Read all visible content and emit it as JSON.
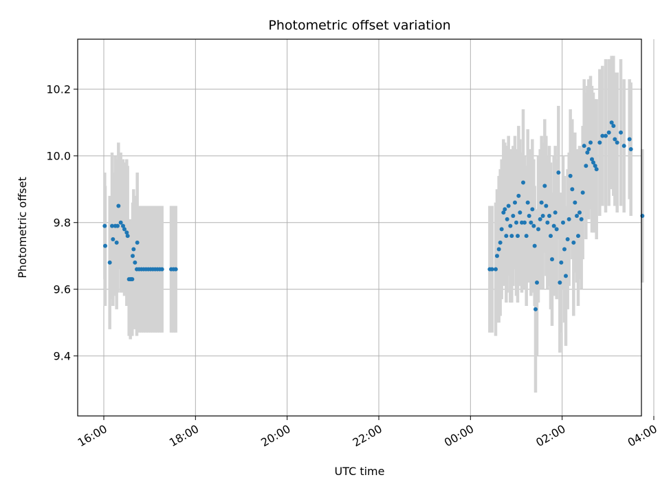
{
  "chart_data": {
    "type": "scatter",
    "title": "Photometric offset variation",
    "xlabel": "UTC time",
    "ylabel": "Photometric offset",
    "x_ticks": [
      "16:00",
      "18:00",
      "20:00",
      "22:00",
      "00:00",
      "02:00",
      "04:00"
    ],
    "y_ticks": [
      "9.4",
      "9.6",
      "9.8",
      "10.0",
      "10.2"
    ],
    "xlim_hours": [
      15.43,
      27.73
    ],
    "ylim": [
      9.22,
      10.35
    ],
    "grid": true,
    "colors": {
      "points": "#1f77b4",
      "errorbars": "#d3d3d3",
      "grid": "#b0b0b0"
    },
    "series": [
      {
        "points": [
          {
            "x": 16.02,
            "y": 9.79,
            "err": 0.16
          },
          {
            "x": 16.03,
            "y": 9.73,
            "err": 0.18
          },
          {
            "x": 16.13,
            "y": 9.68,
            "err": 0.2
          },
          {
            "x": 16.18,
            "y": 9.79,
            "err": 0.22
          },
          {
            "x": 16.2,
            "y": 9.75,
            "err": 0.2
          },
          {
            "x": 16.25,
            "y": 9.79,
            "err": 0.21
          },
          {
            "x": 16.28,
            "y": 9.74,
            "err": 0.2
          },
          {
            "x": 16.3,
            "y": 9.79,
            "err": 0.2
          },
          {
            "x": 16.32,
            "y": 9.85,
            "err": 0.19
          },
          {
            "x": 16.37,
            "y": 9.8,
            "err": 0.21
          },
          {
            "x": 16.42,
            "y": 9.79,
            "err": 0.2
          },
          {
            "x": 16.45,
            "y": 9.78,
            "err": 0.2
          },
          {
            "x": 16.5,
            "y": 9.77,
            "err": 0.22
          },
          {
            "x": 16.52,
            "y": 9.76,
            "err": 0.21
          },
          {
            "x": 16.55,
            "y": 9.63,
            "err": 0.17
          },
          {
            "x": 16.58,
            "y": 9.63,
            "err": 0.18
          },
          {
            "x": 16.6,
            "y": 9.63,
            "err": 0.17
          },
          {
            "x": 16.62,
            "y": 9.63,
            "err": 0.17
          },
          {
            "x": 16.63,
            "y": 9.7,
            "err": 0.16
          },
          {
            "x": 16.65,
            "y": 9.72,
            "err": 0.18
          },
          {
            "x": 16.68,
            "y": 9.68,
            "err": 0.2
          },
          {
            "x": 16.72,
            "y": 9.66,
            "err": 0.2
          },
          {
            "x": 16.73,
            "y": 9.74,
            "err": 0.21
          },
          {
            "x": 16.77,
            "y": 9.66,
            "err": 0.19
          },
          {
            "x": 16.82,
            "y": 9.66,
            "err": 0.19
          },
          {
            "x": 16.87,
            "y": 9.66,
            "err": 0.19
          },
          {
            "x": 16.92,
            "y": 9.66,
            "err": 0.19
          },
          {
            "x": 16.97,
            "y": 9.66,
            "err": 0.19
          },
          {
            "x": 17.02,
            "y": 9.66,
            "err": 0.19
          },
          {
            "x": 17.07,
            "y": 9.66,
            "err": 0.19
          },
          {
            "x": 17.12,
            "y": 9.66,
            "err": 0.19
          },
          {
            "x": 17.17,
            "y": 9.66,
            "err": 0.19
          },
          {
            "x": 17.22,
            "y": 9.66,
            "err": 0.19
          },
          {
            "x": 17.27,
            "y": 9.66,
            "err": 0.19
          },
          {
            "x": 17.47,
            "y": 9.66,
            "err": 0.19
          },
          {
            "x": 17.52,
            "y": 9.66,
            "err": 0.19
          },
          {
            "x": 17.57,
            "y": 9.66,
            "err": 0.19
          },
          {
            "x": 24.42,
            "y": 9.66,
            "err": 0.19
          },
          {
            "x": 24.47,
            "y": 9.66,
            "err": 0.19
          },
          {
            "x": 24.55,
            "y": 9.66,
            "err": 0.2
          },
          {
            "x": 24.58,
            "y": 9.7,
            "err": 0.2
          },
          {
            "x": 24.62,
            "y": 9.72,
            "err": 0.22
          },
          {
            "x": 24.65,
            "y": 9.74,
            "err": 0.22
          },
          {
            "x": 24.68,
            "y": 9.78,
            "err": 0.21
          },
          {
            "x": 24.72,
            "y": 9.83,
            "err": 0.22
          },
          {
            "x": 24.75,
            "y": 9.84,
            "err": 0.2
          },
          {
            "x": 24.78,
            "y": 9.76,
            "err": 0.2
          },
          {
            "x": 24.8,
            "y": 9.81,
            "err": 0.22
          },
          {
            "x": 24.83,
            "y": 9.85,
            "err": 0.21
          },
          {
            "x": 24.87,
            "y": 9.79,
            "err": 0.23
          },
          {
            "x": 24.9,
            "y": 9.76,
            "err": 0.2
          },
          {
            "x": 24.93,
            "y": 9.82,
            "err": 0.21
          },
          {
            "x": 24.97,
            "y": 9.86,
            "err": 0.2
          },
          {
            "x": 25.0,
            "y": 9.8,
            "err": 0.22
          },
          {
            "x": 25.03,
            "y": 9.76,
            "err": 0.2
          },
          {
            "x": 25.05,
            "y": 9.88,
            "err": 0.21
          },
          {
            "x": 25.08,
            "y": 9.83,
            "err": 0.22
          },
          {
            "x": 25.12,
            "y": 9.8,
            "err": 0.21
          },
          {
            "x": 25.15,
            "y": 9.92,
            "err": 0.22
          },
          {
            "x": 25.18,
            "y": 9.8,
            "err": 0.2
          },
          {
            "x": 25.22,
            "y": 9.76,
            "err": 0.21
          },
          {
            "x": 25.25,
            "y": 9.86,
            "err": 0.22
          },
          {
            "x": 25.28,
            "y": 9.82,
            "err": 0.2
          },
          {
            "x": 25.32,
            "y": 9.8,
            "err": 0.22
          },
          {
            "x": 25.35,
            "y": 9.84,
            "err": 0.21
          },
          {
            "x": 25.38,
            "y": 9.79,
            "err": 0.2
          },
          {
            "x": 25.4,
            "y": 9.73,
            "err": 0.18
          },
          {
            "x": 25.42,
            "y": 9.54,
            "err": 0.25
          },
          {
            "x": 25.45,
            "y": 9.62,
            "err": 0.22
          },
          {
            "x": 25.48,
            "y": 9.78,
            "err": 0.22
          },
          {
            "x": 25.52,
            "y": 9.81,
            "err": 0.21
          },
          {
            "x": 25.55,
            "y": 9.86,
            "err": 0.2
          },
          {
            "x": 25.58,
            "y": 9.82,
            "err": 0.22
          },
          {
            "x": 25.62,
            "y": 9.91,
            "err": 0.2
          },
          {
            "x": 25.65,
            "y": 9.85,
            "err": 0.21
          },
          {
            "x": 25.68,
            "y": 9.8,
            "err": 0.2
          },
          {
            "x": 25.72,
            "y": 9.82,
            "err": 0.21
          },
          {
            "x": 25.75,
            "y": 9.76,
            "err": 0.22
          },
          {
            "x": 25.78,
            "y": 9.69,
            "err": 0.2
          },
          {
            "x": 25.82,
            "y": 9.79,
            "err": 0.21
          },
          {
            "x": 25.85,
            "y": 9.83,
            "err": 0.2
          },
          {
            "x": 25.88,
            "y": 9.78,
            "err": 0.21
          },
          {
            "x": 25.92,
            "y": 9.95,
            "err": 0.2
          },
          {
            "x": 25.95,
            "y": 9.62,
            "err": 0.21
          },
          {
            "x": 25.98,
            "y": 9.68,
            "err": 0.21
          },
          {
            "x": 26.02,
            "y": 9.8,
            "err": 0.2
          },
          {
            "x": 26.05,
            "y": 9.72,
            "err": 0.22
          },
          {
            "x": 26.08,
            "y": 9.64,
            "err": 0.21
          },
          {
            "x": 26.12,
            "y": 9.75,
            "err": 0.21
          },
          {
            "x": 26.15,
            "y": 9.81,
            "err": 0.2
          },
          {
            "x": 26.18,
            "y": 9.94,
            "err": 0.2
          },
          {
            "x": 26.22,
            "y": 9.9,
            "err": 0.21
          },
          {
            "x": 26.25,
            "y": 9.74,
            "err": 0.22
          },
          {
            "x": 26.28,
            "y": 9.86,
            "err": 0.21
          },
          {
            "x": 26.32,
            "y": 9.82,
            "err": 0.2
          },
          {
            "x": 26.35,
            "y": 9.76,
            "err": 0.21
          },
          {
            "x": 26.38,
            "y": 9.83,
            "err": 0.2
          },
          {
            "x": 26.42,
            "y": 9.81,
            "err": 0.21
          },
          {
            "x": 26.45,
            "y": 9.89,
            "err": 0.2
          },
          {
            "x": 26.48,
            "y": 10.03,
            "err": 0.2
          },
          {
            "x": 26.52,
            "y": 9.97,
            "err": 0.22
          },
          {
            "x": 26.55,
            "y": 10.01,
            "err": 0.2
          },
          {
            "x": 26.58,
            "y": 10.02,
            "err": 0.21
          },
          {
            "x": 26.62,
            "y": 10.04,
            "err": 0.2
          },
          {
            "x": 26.65,
            "y": 9.99,
            "err": 0.22
          },
          {
            "x": 26.68,
            "y": 9.98,
            "err": 0.21
          },
          {
            "x": 26.72,
            "y": 9.97,
            "err": 0.2
          },
          {
            "x": 26.75,
            "y": 9.96,
            "err": 0.21
          },
          {
            "x": 26.82,
            "y": 10.04,
            "err": 0.22
          },
          {
            "x": 26.88,
            "y": 10.06,
            "err": 0.21
          },
          {
            "x": 26.95,
            "y": 10.06,
            "err": 0.23
          },
          {
            "x": 27.02,
            "y": 10.07,
            "err": 0.22
          },
          {
            "x": 27.08,
            "y": 10.1,
            "err": 0.2
          },
          {
            "x": 27.12,
            "y": 10.09,
            "err": 0.21
          },
          {
            "x": 27.15,
            "y": 10.05,
            "err": 0.2
          },
          {
            "x": 27.2,
            "y": 10.04,
            "err": 0.21
          },
          {
            "x": 27.28,
            "y": 10.07,
            "err": 0.22
          },
          {
            "x": 27.35,
            "y": 10.03,
            "err": 0.2
          },
          {
            "x": 27.47,
            "y": 10.05,
            "err": 0.18
          },
          {
            "x": 27.5,
            "y": 10.02,
            "err": 0.2
          },
          {
            "x": 27.75,
            "y": 9.82,
            "err": 0.2
          }
        ]
      }
    ]
  }
}
